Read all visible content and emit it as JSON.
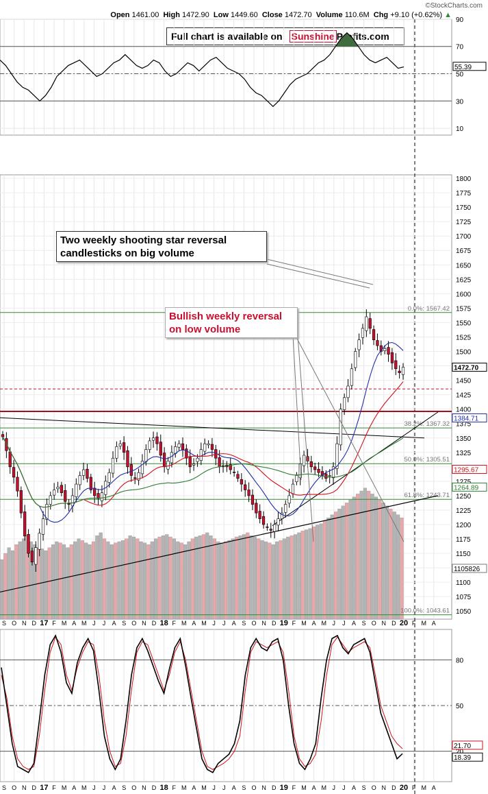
{
  "header": {
    "open_label": "Open",
    "open": "1461.00",
    "high_label": "High",
    "high": "1472.90",
    "low_label": "Low",
    "low": "1449.60",
    "close_label": "Close",
    "close": "1472.70",
    "volume_label": "Volume",
    "volume": "110.6M",
    "chg_label": "Chg",
    "chg": "+9.10 (+0.62%)",
    "up_arrow": "▲",
    "watermark": "©StockCharts.com"
  },
  "promo": {
    "text": "Full chart is available on",
    "brand_a": "Sunshine",
    "brand_b": "Profits.com"
  },
  "callouts": {
    "shooting_star": [
      "Two weekly shooting star reversal",
      "candlesticks on big volume"
    ],
    "bullish": [
      "Bullish weekly reversal",
      "on low volume"
    ]
  },
  "colors": {
    "up": "#ffffff",
    "down": "#c8102e",
    "ma_blue": "#1f2ea8",
    "ma_red": "#d0101a",
    "ma_green": "#2e7d32",
    "fib_green": "#2e8b2e",
    "vol_gray": "#b4b4b4",
    "vol_red": "#e8a8ab"
  },
  "chart_data": [
    {
      "type": "line",
      "panel": "RSI",
      "y_ticks": [
        10,
        30,
        50,
        70,
        90
      ],
      "ylim": [
        0,
        100
      ],
      "reference_lines": [
        30,
        50,
        70
      ],
      "current_value_label": "55.39",
      "values": [
        60,
        56,
        50,
        44,
        40,
        38,
        34,
        30,
        34,
        40,
        48,
        52,
        56,
        58,
        60,
        56,
        52,
        48,
        50,
        54,
        58,
        60,
        64,
        60,
        56,
        54,
        56,
        60,
        58,
        52,
        48,
        50,
        54,
        58,
        56,
        52,
        56,
        60,
        62,
        58,
        54,
        52,
        50,
        46,
        40,
        36,
        34,
        30,
        26,
        30,
        36,
        42,
        46,
        48,
        50,
        54,
        58,
        60,
        64,
        70,
        76,
        80,
        76,
        70,
        64,
        60,
        58,
        60,
        62,
        58,
        54,
        55
      ]
    },
    {
      "type": "candlestick",
      "panel": "Price",
      "y_ticks": [
        1050,
        1075,
        1100,
        1125,
        1150,
        1175,
        1200,
        1225,
        1250,
        1275,
        1300,
        1325,
        1350,
        1375,
        1400,
        1425,
        1450,
        1475,
        1500,
        1525,
        1550,
        1575,
        1600,
        1625,
        1650,
        1675,
        1700,
        1725,
        1750,
        1775,
        1800
      ],
      "ylim": [
        1036,
        1806
      ],
      "x_ticks": [
        "S",
        "O",
        "N",
        "D",
        "17",
        "F",
        "M",
        "A",
        "M",
        "J",
        "J",
        "A",
        "S",
        "O",
        "N",
        "D",
        "18",
        "F",
        "M",
        "A",
        "M",
        "J",
        "J",
        "A",
        "S",
        "O",
        "N",
        "D",
        "19",
        "F",
        "M",
        "A",
        "M",
        "J",
        "J",
        "A",
        "S",
        "O",
        "N",
        "D",
        "20",
        "F",
        "M",
        "A"
      ],
      "closes": [
        1352,
        1328,
        1300,
        1282,
        1258,
        1220,
        1180,
        1150,
        1135,
        1160,
        1185,
        1210,
        1235,
        1250,
        1260,
        1265,
        1255,
        1240,
        1235,
        1250,
        1270,
        1285,
        1295,
        1280,
        1260,
        1250,
        1245,
        1255,
        1275,
        1290,
        1315,
        1335,
        1340,
        1325,
        1300,
        1285,
        1280,
        1290,
        1310,
        1330,
        1345,
        1350,
        1340,
        1320,
        1300,
        1310,
        1325,
        1335,
        1340,
        1330,
        1315,
        1300,
        1305,
        1315,
        1330,
        1340,
        1340,
        1330,
        1315,
        1300,
        1300,
        1300,
        1295,
        1290,
        1280,
        1270,
        1260,
        1250,
        1235,
        1220,
        1210,
        1200,
        1195,
        1190,
        1200,
        1210,
        1220,
        1235,
        1250,
        1270,
        1285,
        1305,
        1320,
        1310,
        1300,
        1295,
        1290,
        1285,
        1280,
        1285,
        1300,
        1340,
        1400,
        1420,
        1440,
        1470,
        1500,
        1520,
        1540,
        1560,
        1540,
        1520,
        1510,
        1500,
        1505,
        1495,
        1480,
        1470,
        1463,
        1472.7
      ],
      "ma_50": "blue",
      "ma_100": "red",
      "ma_200": "green",
      "fib_levels": [
        {
          "label": "0.0%: 1567.42",
          "value": 1567.42
        },
        {
          "label": "38.2%: 1367.32",
          "value": 1367.32
        },
        {
          "label": "50.0%: 1305.51",
          "value": 1305.51
        },
        {
          "label": "61.8%: 1243.71",
          "value": 1243.71
        },
        {
          "label": "100.0%: 1043.61",
          "value": 1043.61
        }
      ],
      "value_labels": [
        "1472.70",
        "1384.71",
        "1295.67",
        "1264.89",
        "1105826"
      ],
      "resistance_lines": [
        1396,
        1437
      ],
      "volume_values": [
        1000,
        1100,
        1200,
        1150,
        1250,
        1300,
        1350,
        1400,
        1300,
        1250,
        1200,
        1180,
        1150,
        1200,
        1250,
        1300,
        1280,
        1250,
        1200,
        1250,
        1300,
        1350,
        1320,
        1280,
        1250,
        1300,
        1400,
        1450,
        1350,
        1300,
        1250,
        1280,
        1300,
        1320,
        1350,
        1400,
        1380,
        1350,
        1300,
        1280,
        1250,
        1300,
        1350,
        1380,
        1400,
        1420,
        1380,
        1350,
        1300,
        1280,
        1250,
        1300,
        1350,
        1380,
        1400,
        1420,
        1450,
        1400,
        1350,
        1300,
        1280,
        1300,
        1320,
        1350,
        1380,
        1400,
        1420,
        1450,
        1400,
        1380,
        1350,
        1320,
        1300,
        1280,
        1250,
        1300,
        1320,
        1350,
        1380,
        1400,
        1420,
        1450,
        1480,
        1500,
        1520,
        1550,
        1580,
        1600,
        1650,
        1700,
        1750,
        1800,
        1850,
        1900,
        1950,
        2000,
        2050,
        2100,
        2150,
        2200,
        2150,
        2100,
        2050,
        2000,
        1950,
        1900,
        1850,
        1800,
        1750,
        1700
      ]
    },
    {
      "type": "line",
      "panel": "Stochastic",
      "y_ticks": [
        20,
        50,
        80
      ],
      "ylim": [
        0,
        100
      ],
      "reference_lines": [
        20,
        50,
        80
      ],
      "series": [
        {
          "label": "21.70",
          "values": [
            70,
            55,
            30,
            15,
            10,
            8,
            10,
            30,
            60,
            85,
            95,
            90,
            70,
            60,
            75,
            85,
            92,
            90,
            70,
            40,
            20,
            10,
            12,
            30,
            60,
            85,
            92,
            90,
            80,
            70,
            60,
            70,
            85,
            92,
            80,
            60,
            40,
            20,
            10,
            8,
            10,
            12,
            15,
            20,
            30,
            60,
            85,
            92,
            90,
            88,
            90,
            92,
            85,
            60,
            30,
            15,
            10,
            12,
            18,
            40,
            70,
            90,
            95,
            90,
            85,
            88,
            90,
            92,
            88,
            70,
            50,
            40,
            30,
            25,
            21.7
          ]
        },
        {
          "label": "18.39",
          "values": [
            75,
            50,
            25,
            10,
            8,
            6,
            12,
            40,
            70,
            90,
            96,
            85,
            65,
            58,
            78,
            88,
            94,
            86,
            60,
            30,
            15,
            8,
            15,
            40,
            70,
            88,
            94,
            86,
            76,
            66,
            58,
            74,
            88,
            94,
            76,
            55,
            35,
            15,
            8,
            6,
            12,
            15,
            18,
            25,
            40,
            70,
            88,
            94,
            88,
            86,
            92,
            94,
            80,
            50,
            25,
            12,
            8,
            15,
            25,
            55,
            80,
            94,
            96,
            88,
            84,
            90,
            92,
            94,
            85,
            65,
            45,
            35,
            25,
            15,
            18.39
          ]
        }
      ],
      "x_ticks": [
        "S",
        "O",
        "N",
        "D",
        "17",
        "F",
        "M",
        "A",
        "M",
        "J",
        "J",
        "A",
        "S",
        "O",
        "N",
        "D",
        "18",
        "F",
        "M",
        "A",
        "M",
        "J",
        "J",
        "A",
        "S",
        "O",
        "N",
        "D",
        "19",
        "F",
        "M",
        "A",
        "M",
        "J",
        "J",
        "A",
        "S",
        "O",
        "N",
        "D",
        "20",
        "F",
        "M",
        "A"
      ]
    }
  ]
}
